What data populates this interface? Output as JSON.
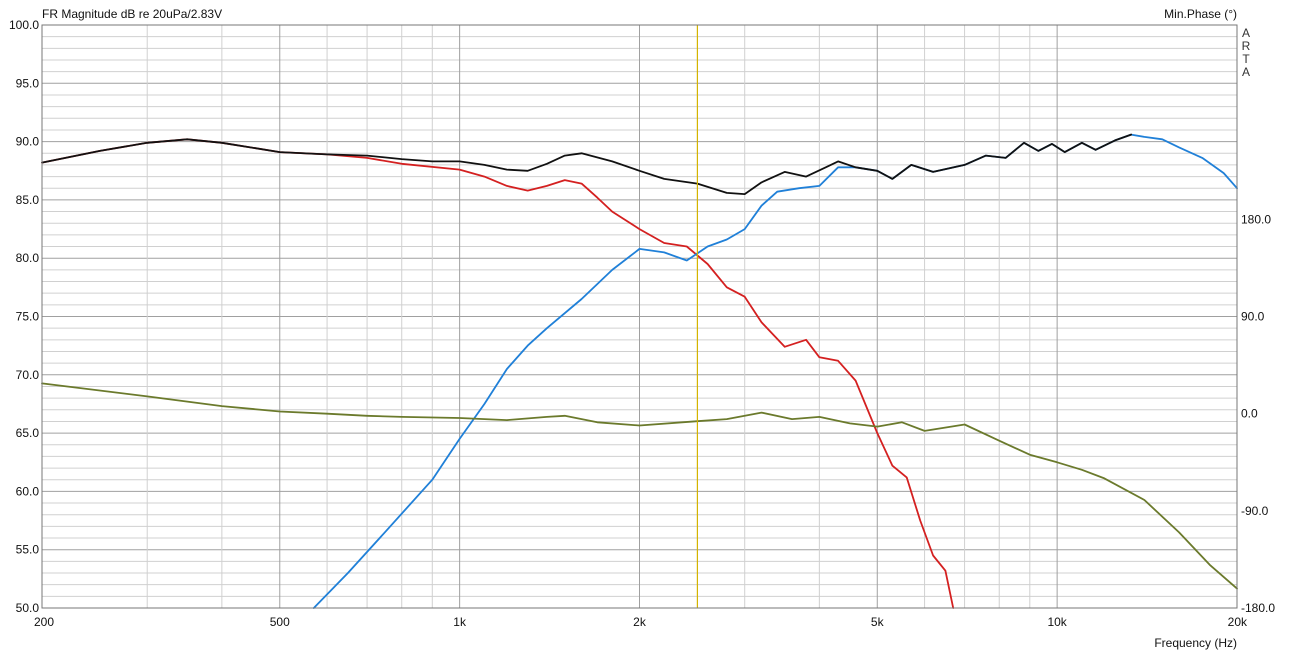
{
  "chart_data": {
    "type": "line",
    "title_left": "FR Magnitude dB re 20uPa/2.83V",
    "title_right": "Min.Phase (°)",
    "watermark": [
      "A",
      "R",
      "T",
      "A"
    ],
    "xlabel": "Frequency (Hz)",
    "x_scale": "log",
    "xlim": [
      200,
      20000
    ],
    "x_ticks": [
      {
        "value": 200,
        "label": "200"
      },
      {
        "value": 500,
        "label": "500"
      },
      {
        "value": 1000,
        "label": "1k"
      },
      {
        "value": 2000,
        "label": "2k"
      },
      {
        "value": 5000,
        "label": "5k"
      },
      {
        "value": 10000,
        "label": "10k"
      },
      {
        "value": 20000,
        "label": "20k"
      }
    ],
    "ylim": [
      50,
      100
    ],
    "y_ticks": [
      {
        "value": 100,
        "label": "100.0"
      },
      {
        "value": 95,
        "label": "95.0"
      },
      {
        "value": 90,
        "label": "90.0"
      },
      {
        "value": 85,
        "label": "85.0"
      },
      {
        "value": 80,
        "label": "80.0"
      },
      {
        "value": 75,
        "label": "75.0"
      },
      {
        "value": 70,
        "label": "70.0"
      },
      {
        "value": 65,
        "label": "65.0"
      },
      {
        "value": 60,
        "label": "60.0"
      },
      {
        "value": 55,
        "label": "55.0"
      },
      {
        "value": 50,
        "label": "50.0"
      }
    ],
    "y2lim": [
      -180,
      360
    ],
    "y2_ticks": [
      {
        "value": 180,
        "label": "180.0"
      },
      {
        "value": 90,
        "label": "90.0"
      },
      {
        "value": 0,
        "label": "0.0"
      },
      {
        "value": -90,
        "label": "-90.0"
      },
      {
        "value": -180,
        "label": "-180.0"
      }
    ],
    "grid": true,
    "cursor_frequency": 2500,
    "colors": {
      "grid_minor": "#d0d0d0",
      "grid_major": "#a0a0a0",
      "cursor": "#d4b400"
    },
    "series": [
      {
        "axis": "y",
        "color": "#d42020",
        "points": [
          [
            200,
            88.2
          ],
          [
            250,
            89.2
          ],
          [
            300,
            89.9
          ],
          [
            350,
            90.2
          ],
          [
            400,
            89.9
          ],
          [
            500,
            89.1
          ],
          [
            600,
            88.9
          ],
          [
            700,
            88.6
          ],
          [
            800,
            88.1
          ],
          [
            1000,
            87.6
          ],
          [
            1100,
            87.0
          ],
          [
            1200,
            86.2
          ],
          [
            1300,
            85.8
          ],
          [
            1400,
            86.2
          ],
          [
            1500,
            86.7
          ],
          [
            1600,
            86.4
          ],
          [
            1700,
            85.2
          ],
          [
            1800,
            84.0
          ],
          [
            2000,
            82.5
          ],
          [
            2200,
            81.3
          ],
          [
            2400,
            81.0
          ],
          [
            2600,
            79.5
          ],
          [
            2800,
            77.5
          ],
          [
            3000,
            76.7
          ],
          [
            3200,
            74.5
          ],
          [
            3500,
            72.4
          ],
          [
            3800,
            73.0
          ],
          [
            4000,
            71.5
          ],
          [
            4300,
            71.2
          ],
          [
            4600,
            69.5
          ],
          [
            5000,
            65.0
          ],
          [
            5300,
            62.2
          ],
          [
            5600,
            61.2
          ],
          [
            5900,
            57.5
          ],
          [
            6200,
            54.5
          ],
          [
            6500,
            53.2
          ],
          [
            6700,
            50.0
          ]
        ]
      },
      {
        "axis": "y",
        "color": "#2080d8",
        "points": [
          [
            570,
            50.0
          ],
          [
            650,
            53.0
          ],
          [
            750,
            56.5
          ],
          [
            900,
            61.0
          ],
          [
            1000,
            64.5
          ],
          [
            1100,
            67.5
          ],
          [
            1200,
            70.5
          ],
          [
            1300,
            72.5
          ],
          [
            1400,
            74.0
          ],
          [
            1600,
            76.5
          ],
          [
            1800,
            79.0
          ],
          [
            2000,
            80.8
          ],
          [
            2200,
            80.5
          ],
          [
            2400,
            79.8
          ],
          [
            2600,
            81.0
          ],
          [
            2800,
            81.6
          ],
          [
            3000,
            82.5
          ],
          [
            3200,
            84.5
          ],
          [
            3400,
            85.7
          ],
          [
            3700,
            86.0
          ],
          [
            4000,
            86.2
          ],
          [
            4300,
            87.8
          ],
          [
            4600,
            87.8
          ],
          [
            5000,
            87.5
          ],
          [
            5300,
            86.8
          ],
          [
            5700,
            88.0
          ],
          [
            6200,
            87.4
          ],
          [
            7000,
            88.0
          ],
          [
            7600,
            88.8
          ],
          [
            8200,
            88.6
          ],
          [
            8800,
            89.9
          ],
          [
            9300,
            89.2
          ],
          [
            9800,
            89.8
          ],
          [
            10300,
            89.1
          ],
          [
            11000,
            89.9
          ],
          [
            11600,
            89.3
          ],
          [
            12500,
            90.1
          ],
          [
            13300,
            90.6
          ],
          [
            14000,
            90.4
          ],
          [
            15000,
            90.2
          ],
          [
            16000,
            89.5
          ],
          [
            17500,
            88.6
          ],
          [
            19000,
            87.3
          ],
          [
            20000,
            86.0
          ]
        ]
      },
      {
        "axis": "y",
        "color": "#111111",
        "points": [
          [
            200,
            88.2
          ],
          [
            250,
            89.2
          ],
          [
            300,
            89.9
          ],
          [
            350,
            90.2
          ],
          [
            400,
            89.9
          ],
          [
            500,
            89.1
          ],
          [
            600,
            88.9
          ],
          [
            700,
            88.8
          ],
          [
            800,
            88.5
          ],
          [
            900,
            88.3
          ],
          [
            1000,
            88.3
          ],
          [
            1100,
            88.0
          ],
          [
            1200,
            87.6
          ],
          [
            1300,
            87.5
          ],
          [
            1400,
            88.1
          ],
          [
            1500,
            88.8
          ],
          [
            1600,
            89.0
          ],
          [
            1800,
            88.3
          ],
          [
            2000,
            87.5
          ],
          [
            2200,
            86.8
          ],
          [
            2500,
            86.4
          ],
          [
            2800,
            85.6
          ],
          [
            3000,
            85.5
          ],
          [
            3200,
            86.5
          ],
          [
            3500,
            87.4
          ],
          [
            3800,
            87.0
          ],
          [
            4100,
            87.8
          ],
          [
            4300,
            88.3
          ],
          [
            4600,
            87.8
          ],
          [
            5000,
            87.5
          ],
          [
            5300,
            86.8
          ],
          [
            5700,
            88.0
          ],
          [
            6200,
            87.4
          ],
          [
            7000,
            88.0
          ],
          [
            7600,
            88.8
          ],
          [
            8200,
            88.6
          ],
          [
            8800,
            89.9
          ],
          [
            9300,
            89.2
          ],
          [
            9800,
            89.8
          ],
          [
            10300,
            89.1
          ],
          [
            11000,
            89.9
          ],
          [
            11600,
            89.3
          ],
          [
            12500,
            90.1
          ],
          [
            13300,
            90.6
          ]
        ]
      },
      {
        "axis": "y2",
        "color": "#6b7a2c",
        "points": [
          [
            200,
            28
          ],
          [
            300,
            16
          ],
          [
            400,
            7
          ],
          [
            500,
            2
          ],
          [
            600,
            0
          ],
          [
            700,
            -2
          ],
          [
            800,
            -3
          ],
          [
            1000,
            -4
          ],
          [
            1200,
            -6
          ],
          [
            1400,
            -3
          ],
          [
            1500,
            -2
          ],
          [
            1700,
            -8
          ],
          [
            2000,
            -11
          ],
          [
            2500,
            -7
          ],
          [
            2800,
            -5
          ],
          [
            3200,
            1
          ],
          [
            3600,
            -5
          ],
          [
            4000,
            -3
          ],
          [
            4500,
            -9
          ],
          [
            5000,
            -12
          ],
          [
            5500,
            -8
          ],
          [
            6000,
            -16
          ],
          [
            7000,
            -10
          ],
          [
            8000,
            -25
          ],
          [
            9000,
            -38
          ],
          [
            10000,
            -45
          ],
          [
            11000,
            -52
          ],
          [
            12000,
            -60
          ],
          [
            14000,
            -80
          ],
          [
            16000,
            -110
          ],
          [
            18000,
            -140
          ],
          [
            20000,
            -162
          ]
        ]
      }
    ]
  }
}
